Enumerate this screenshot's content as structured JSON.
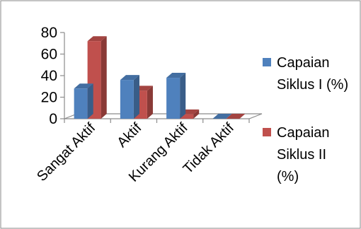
{
  "chart_data": {
    "type": "bar",
    "subtype": "3d-clustered-column",
    "categories": [
      "Sangat Aktif",
      "Aktif",
      "Kurang Aktif",
      "Tidak Aktif"
    ],
    "series": [
      {
        "name": "Capaian Siklus I (%)",
        "legend_lines": [
          "Capaian",
          "Siklus I (%)"
        ],
        "color": "#4f81bd",
        "values": [
          28,
          36,
          38,
          0
        ]
      },
      {
        "name": "Capaian Siklus II (%)",
        "legend_lines": [
          "Capaian",
          "Siklus II",
          "(%)"
        ],
        "color": "#c0504d",
        "values": [
          72,
          26,
          4,
          0
        ]
      }
    ],
    "yticks": [
      0,
      20,
      40,
      60,
      80
    ],
    "ylim": [
      0,
      80
    ],
    "title": "",
    "xlabel": "",
    "ylabel": "",
    "grid": false,
    "legend_position": "right"
  }
}
